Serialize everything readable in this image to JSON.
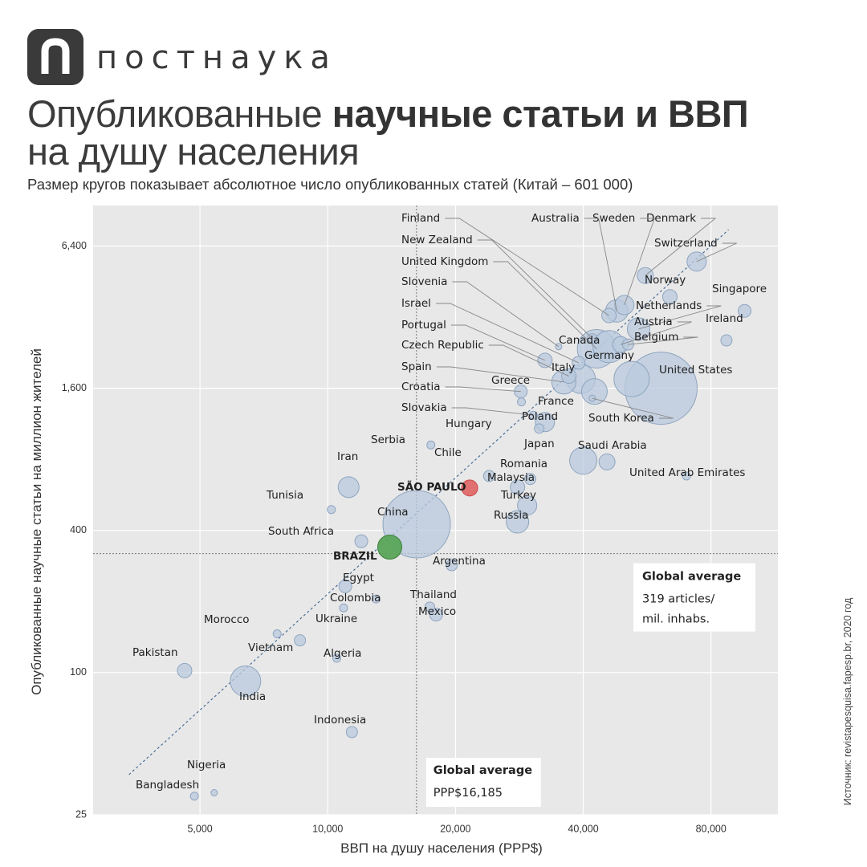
{
  "brand": {
    "logo_letter": "п",
    "name": "постнаука"
  },
  "header": {
    "title_regular": "Опубликованные ",
    "title_bold": "научные статьи и ВВП",
    "title_line2": "на душу населения",
    "subtitle": "Размер кругов показывает абсолютное число опубликованных статей (Китай – 601 000)"
  },
  "source": "Источник: revistapesquisa.fapesp.br, 2020 год",
  "colors": {
    "plot_background": "#e8e8e8",
    "bubble_fill": "#b9c9dd",
    "bubble_stroke": "#8fa5c0",
    "highlight_sao_paulo": "#e06a6a",
    "highlight_brazil": "#5aa55a",
    "trend_line": "#4a6f99"
  },
  "chart_data": {
    "type": "scatter",
    "xlabel": "ВВП на душу населения (PPP$)",
    "ylabel": "Опубликованные научные статьи на миллион жителей",
    "x_scale": "log",
    "y_scale": "log",
    "x_ticks": [
      {
        "value": 5000,
        "label": "5,000"
      },
      {
        "value": 10000,
        "label": "10,000"
      },
      {
        "value": 20000,
        "label": "20,000"
      },
      {
        "value": 40000,
        "label": "40,000"
      },
      {
        "value": 80000,
        "label": "80,000"
      }
    ],
    "y_ticks": [
      {
        "value": 25,
        "label": "25"
      },
      {
        "value": 100,
        "label": "100"
      },
      {
        "value": 400,
        "label": "400"
      },
      {
        "value": 1600,
        "label": "1,600"
      },
      {
        "value": 6400,
        "label": "6,400"
      }
    ],
    "xlim": [
      2800,
      115000
    ],
    "ylim": [
      25,
      9500
    ],
    "grid": true,
    "trend_line": {
      "from": [
        3400,
        37
      ],
      "to": [
        88000,
        7500
      ]
    },
    "reference_lines": [
      {
        "axis": "x",
        "value": 16185,
        "label_title": "Global average",
        "label_text": [
          "PPP$16,185"
        ]
      },
      {
        "axis": "y",
        "value": 319,
        "label_title": "Global average",
        "label_text": [
          "319 articles/",
          "mil. inhabs."
        ]
      }
    ],
    "points": [
      {
        "label": "Switzerland",
        "x": 74000,
        "y": 5500,
        "r": 12
      },
      {
        "label": "Denmark",
        "x": 56000,
        "y": 4800,
        "r": 10
      },
      {
        "label": "Sweden",
        "x": 50000,
        "y": 3600,
        "r": 12
      },
      {
        "label": "Australia",
        "x": 48000,
        "y": 3400,
        "r": 14
      },
      {
        "label": "Norway",
        "x": 64000,
        "y": 3900,
        "r": 9
      },
      {
        "label": "Singapore",
        "x": 96000,
        "y": 3400,
        "r": 8
      },
      {
        "label": "Netherlands",
        "x": 54000,
        "y": 2850,
        "r": 14
      },
      {
        "label": "Ireland",
        "x": 87000,
        "y": 2550,
        "r": 7
      },
      {
        "label": "Finland",
        "x": 46000,
        "y": 3250,
        "r": 9
      },
      {
        "label": "New Zealand",
        "x": 42000,
        "y": 2600,
        "r": 6
      },
      {
        "label": "United Kingdom",
        "x": 43000,
        "y": 2350,
        "r": 24
      },
      {
        "label": "Austria",
        "x": 49000,
        "y": 2450,
        "r": 10
      },
      {
        "label": "Belgium",
        "x": 51000,
        "y": 2450,
        "r": 7
      },
      {
        "label": "Slovenia",
        "x": 35000,
        "y": 2400,
        "r": 4
      },
      {
        "label": "Canada",
        "x": 46000,
        "y": 2400,
        "r": 20
      },
      {
        "label": "Israel",
        "x": 39000,
        "y": 2050,
        "r": 8
      },
      {
        "label": "Portugal",
        "x": 32500,
        "y": 2100,
        "r": 9
      },
      {
        "label": "Germany",
        "x": 52000,
        "y": 1750,
        "r": 22
      },
      {
        "label": "Czech Republic",
        "x": 37000,
        "y": 1800,
        "r": 9
      },
      {
        "label": "Italy",
        "x": 39500,
        "y": 1750,
        "r": 18
      },
      {
        "label": "Spain",
        "x": 36000,
        "y": 1700,
        "r": 15
      },
      {
        "label": "United States",
        "x": 61000,
        "y": 1600,
        "r": 45
      },
      {
        "label": "France",
        "x": 42500,
        "y": 1550,
        "r": 16
      },
      {
        "label": "Croatia",
        "x": 28500,
        "y": 1550,
        "r": 8
      },
      {
        "label": "Greece",
        "x": 28600,
        "y": 1400,
        "r": 5
      },
      {
        "label": "Slovakia",
        "x": 30500,
        "y": 1230,
        "r": 5
      },
      {
        "label": "Poland",
        "x": 32500,
        "y": 1150,
        "r": 12
      },
      {
        "label": "Hungary",
        "x": 31500,
        "y": 1080,
        "r": 6
      },
      {
        "label": "South Korea",
        "x": 42000,
        "y": 1450,
        "r": 4
      },
      {
        "label": "Serbia",
        "x": 17500,
        "y": 920,
        "r": 5
      },
      {
        "label": "Japan",
        "x": 40000,
        "y": 790,
        "r": 17
      },
      {
        "label": "Saudi Arabia",
        "x": 45500,
        "y": 780,
        "r": 10
      },
      {
        "label": "Chile",
        "x": 24000,
        "y": 680,
        "r": 7
      },
      {
        "label": "Romania",
        "x": 30000,
        "y": 660,
        "r": 7
      },
      {
        "label": "Malaysia",
        "x": 28000,
        "y": 610,
        "r": 9
      },
      {
        "label": "United Arab Emirates",
        "x": 70000,
        "y": 680,
        "r": 5
      },
      {
        "label": "Iran",
        "x": 11200,
        "y": 610,
        "r": 13
      },
      {
        "label": "SÃO PAULO",
        "x": 21600,
        "y": 605,
        "r": 10,
        "highlight": "sao_paulo"
      },
      {
        "label": "Turkey",
        "x": 29500,
        "y": 510,
        "r": 12
      },
      {
        "label": "Russia",
        "x": 28000,
        "y": 435,
        "r": 14
      },
      {
        "label": "Tunisia",
        "x": 10200,
        "y": 490,
        "r": 5
      },
      {
        "label": "China",
        "x": 16200,
        "y": 425,
        "r": 42
      },
      {
        "label": "South Africa",
        "x": 12000,
        "y": 360,
        "r": 8
      },
      {
        "label": "BRAZIL",
        "x": 14000,
        "y": 340,
        "r": 15,
        "highlight": "brazil"
      },
      {
        "label": "Argentina",
        "x": 19600,
        "y": 285,
        "r": 7
      },
      {
        "label": "Egypt",
        "x": 11000,
        "y": 232,
        "r": 8
      },
      {
        "label": "Colombia",
        "x": 13000,
        "y": 205,
        "r": 5
      },
      {
        "label": "Thailand",
        "x": 17400,
        "y": 190,
        "r": 6
      },
      {
        "label": "Mexico",
        "x": 18000,
        "y": 176,
        "r": 8
      },
      {
        "label": "Ukraine",
        "x": 10900,
        "y": 188,
        "r": 5
      },
      {
        "label": "Morocco",
        "x": 7600,
        "y": 146,
        "r": 5
      },
      {
        "label": "Vietnam",
        "x": 8600,
        "y": 137,
        "r": 7
      },
      {
        "label": "Algeria",
        "x": 10500,
        "y": 115,
        "r": 5
      },
      {
        "label": "Pakistan",
        "x": 4600,
        "y": 102,
        "r": 9
      },
      {
        "label": "India",
        "x": 6400,
        "y": 92,
        "r": 19
      },
      {
        "label": "Indonesia",
        "x": 11400,
        "y": 56,
        "r": 7
      },
      {
        "label": "Nigeria",
        "x": 5400,
        "y": 31,
        "r": 4
      },
      {
        "label": "Bangladesh",
        "x": 4850,
        "y": 30,
        "r": 5
      }
    ]
  }
}
